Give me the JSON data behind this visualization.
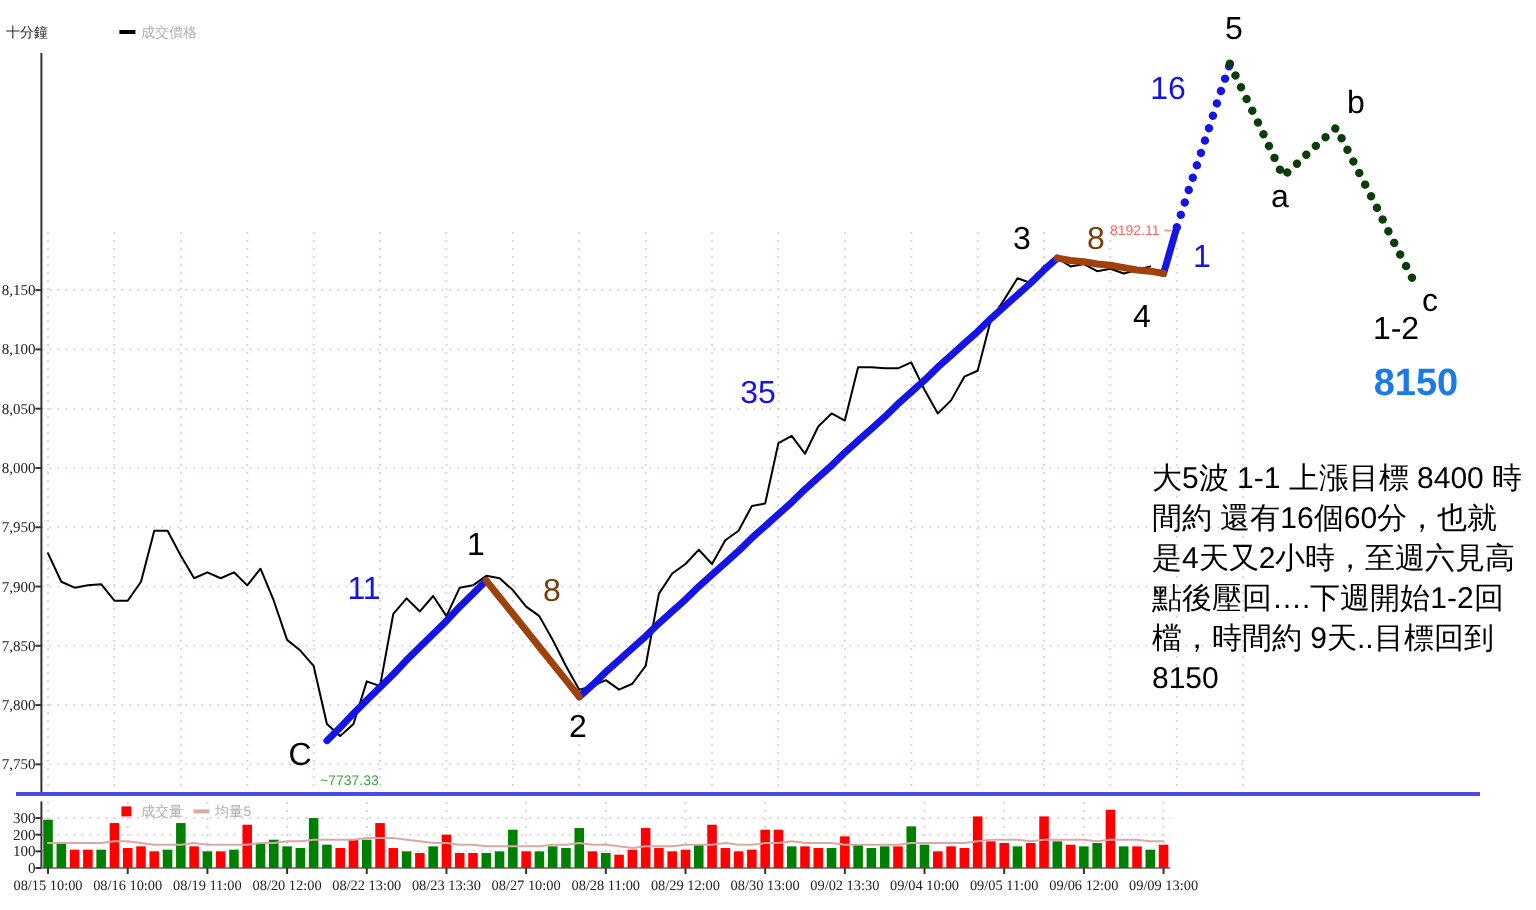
{
  "chart_data": [
    {
      "type": "line",
      "ylim": [
        7725,
        8350
      ],
      "yticks": [
        {
          "value": 7750,
          "label": "7,750"
        },
        {
          "value": 7800,
          "label": "7,800"
        },
        {
          "value": 7850,
          "label": "7,850"
        },
        {
          "value": 7900,
          "label": "7,900"
        },
        {
          "value": 7950,
          "label": "7,950"
        },
        {
          "value": 8000,
          "label": "8,000"
        },
        {
          "value": 8050,
          "label": "8,050"
        },
        {
          "value": 8100,
          "label": "8,100"
        },
        {
          "value": 8150,
          "label": "8,150"
        }
      ],
      "tick_labels": "y",
      "grid": true,
      "legend": "top left",
      "categories": [
        null,
        null,
        null,
        null,
        null,
        null,
        null,
        null,
        null,
        null,
        null,
        null,
        null,
        null,
        null,
        null,
        null,
        null,
        null,
        null,
        null,
        null,
        null,
        null,
        null,
        null,
        null,
        null,
        null,
        null,
        null,
        null,
        null,
        null,
        null,
        null,
        null,
        null,
        null,
        null,
        null,
        null,
        null,
        null,
        null,
        null,
        null,
        null,
        null,
        null,
        null,
        null,
        null,
        null,
        null,
        null,
        null,
        null,
        null,
        null,
        null,
        null,
        null,
        null,
        null,
        null,
        null,
        null,
        null,
        null,
        null,
        null,
        null,
        null,
        null,
        null,
        null,
        null,
        null,
        null,
        null,
        null,
        null,
        null,
        null,
        null,
        null,
        null,
        null,
        null,
        null,
        null,
        null,
        null,
        null,
        null,
        null,
        null,
        null,
        null,
        null,
        null,
        null,
        null
      ],
      "series": [
        {
          "name": "成交價格",
          "color": "#000000",
          "values": [
            7928,
            7904,
            7899,
            7901,
            7902,
            7888,
            7888,
            7904,
            7947,
            7947,
            7926,
            7907,
            7912,
            7907,
            7912,
            7901,
            7915,
            7888,
            7855,
            7846,
            7833,
            7784,
            7774,
            7784,
            7820,
            7816,
            7877,
            7890,
            7879,
            7892,
            7875,
            7899,
            7901,
            7909,
            7907,
            7897,
            7883,
            7875,
            7855,
            7833,
            7813,
            7816,
            7821,
            7813,
            7818,
            7833,
            7894,
            7911,
            7919,
            7931,
            7919,
            7939,
            7947,
            7968,
            7970,
            8021,
            8027,
            8012,
            8035,
            8046,
            8040,
            8085,
            8085,
            8084,
            8084,
            8089,
            8066,
            8046,
            8057,
            8077,
            8082,
            8125,
            8142,
            8160,
            8156,
            8170,
            8177,
            8170,
            8172,
            8166,
            8168,
            8164,
            8167,
            8170,
            null,
            null,
            null,
            null,
            null,
            null,
            null,
            null,
            null,
            null,
            null,
            null,
            null,
            null,
            null,
            null,
            null,
            null,
            null,
            null
          ]
        },
        {
          "color": "#1414e6",
          "values": [
            null,
            null,
            null,
            null,
            null,
            null,
            null,
            null,
            null,
            null,
            null,
            null,
            null,
            null,
            null,
            null,
            null,
            null,
            null,
            null,
            null,
            7770,
            7781,
            7793,
            7804,
            7815,
            7826,
            7838,
            7849,
            7860,
            7871,
            7883,
            7894,
            7905,
            null,
            null,
            null,
            null,
            null,
            null,
            7807,
            7817,
            7828,
            7838,
            7848,
            7858,
            7869,
            7879,
            7889,
            7900,
            7910,
            7920,
            7930,
            7941,
            7951,
            7961,
            7971,
            7982,
            7992,
            8002,
            8013,
            8023,
            8033,
            8043,
            8054,
            8064,
            8074,
            8085,
            8095,
            8105,
            8115,
            8126,
            8136,
            8146,
            8156,
            8167,
            8177,
            null,
            null,
            null,
            null,
            null,
            null,
            null,
            8164,
            8203,
            null,
            null,
            null,
            null,
            null,
            null,
            null,
            null,
            null,
            null,
            null,
            null,
            null,
            null,
            null,
            null,
            null,
            null
          ]
        },
        {
          "color": "#a0400a",
          "values": [
            null,
            null,
            null,
            null,
            null,
            null,
            null,
            null,
            null,
            null,
            null,
            null,
            null,
            null,
            null,
            null,
            null,
            null,
            null,
            null,
            null,
            null,
            null,
            null,
            null,
            null,
            null,
            null,
            null,
            null,
            null,
            null,
            null,
            7905,
            7891,
            7877,
            7863,
            7849,
            7835,
            7821,
            7807,
            null,
            null,
            null,
            null,
            null,
            null,
            null,
            null,
            null,
            null,
            null,
            null,
            null,
            null,
            null,
            null,
            null,
            null,
            null,
            null,
            null,
            null,
            null,
            null,
            null,
            null,
            null,
            null,
            null,
            null,
            null,
            null,
            null,
            null,
            null,
            8177,
            8175,
            8174,
            8172,
            8171,
            8169,
            8167,
            8166,
            8164,
            null,
            null,
            null,
            null,
            null,
            null,
            null,
            null,
            null,
            null,
            null,
            null,
            null,
            null,
            null,
            null,
            null,
            null,
            null
          ]
        },
        {
          "color": "#1414e6",
          "line_style": "dotted",
          "values": [
            null,
            null,
            null,
            null,
            null,
            null,
            null,
            null,
            null,
            null,
            null,
            null,
            null,
            null,
            null,
            null,
            null,
            null,
            null,
            null,
            null,
            null,
            null,
            null,
            null,
            null,
            null,
            null,
            null,
            null,
            null,
            null,
            null,
            null,
            null,
            null,
            null,
            null,
            null,
            null,
            null,
            null,
            null,
            null,
            null,
            null,
            null,
            null,
            null,
            null,
            null,
            null,
            null,
            null,
            null,
            null,
            null,
            null,
            null,
            null,
            null,
            null,
            null,
            null,
            null,
            null,
            null,
            null,
            null,
            null,
            null,
            null,
            null,
            null,
            null,
            null,
            null,
            null,
            null,
            null,
            null,
            null,
            null,
            null,
            null,
            8203,
            8238,
            8272,
            8307,
            8341,
            null,
            null,
            null,
            null,
            null,
            null,
            null,
            null,
            null,
            null,
            null,
            null,
            null,
            null
          ]
        },
        {
          "color": "#0b3d0b",
          "line_style": "dotted",
          "values": [
            null,
            null,
            null,
            null,
            null,
            null,
            null,
            null,
            null,
            null,
            null,
            null,
            null,
            null,
            null,
            null,
            null,
            null,
            null,
            null,
            null,
            null,
            null,
            null,
            null,
            null,
            null,
            null,
            null,
            null,
            null,
            null,
            null,
            null,
            null,
            null,
            null,
            null,
            null,
            null,
            null,
            null,
            null,
            null,
            null,
            null,
            null,
            null,
            null,
            null,
            null,
            null,
            null,
            null,
            null,
            null,
            null,
            null,
            null,
            null,
            null,
            null,
            null,
            null,
            null,
            null,
            null,
            null,
            null,
            null,
            null,
            null,
            null,
            null,
            null,
            null,
            null,
            null,
            null,
            null,
            null,
            null,
            null,
            null,
            null,
            null,
            null,
            null,
            null,
            8341,
            8317,
            8294,
            8270,
            8246,
            8256,
            8267,
            8277,
            8287,
            8265,
            8243,
            8221,
            8198,
            8176,
            8154
          ]
        }
      ],
      "annotations": [
        "十分鐘",
        "C",
        "1",
        "8",
        "2",
        "11",
        "35",
        "3",
        "8",
        "4",
        "1",
        "16",
        "5",
        "a",
        "b",
        "c",
        "1-2",
        "8150",
        "~7737.33",
        "8192.11 ~",
        "大5波 1-1 上漲目標 8400 時間約 還有16個60分，也就是4天又2小時，至週六見高點後壓回….下週開始1-2回檔，時間約 9天..目標回到 8150"
      ]
    },
    {
      "type": "bar",
      "ylim": [
        0,
        400
      ],
      "yticks": [
        0,
        100,
        200,
        300
      ],
      "grid": true,
      "legend": "top left",
      "categories": [
        "08/15 10:00",
        null,
        null,
        null,
        null,
        null,
        "08/16 10:00",
        null,
        null,
        null,
        null,
        null,
        "08/19 11:00",
        null,
        null,
        null,
        null,
        null,
        "08/20 12:00",
        null,
        null,
        null,
        null,
        null,
        "08/22 13:00",
        null,
        null,
        null,
        null,
        null,
        "08/23 13:30",
        null,
        null,
        null,
        null,
        null,
        "08/27 10:00",
        null,
        null,
        null,
        null,
        null,
        "08/28 11:00",
        null,
        null,
        null,
        null,
        null,
        "08/29 12:00",
        null,
        null,
        null,
        null,
        null,
        "08/30 13:00",
        null,
        null,
        null,
        null,
        null,
        "09/02 13:30",
        null,
        null,
        null,
        null,
        null,
        "09/04 10:00",
        null,
        null,
        null,
        null,
        null,
        "09/05 11:00",
        null,
        null,
        null,
        null,
        null,
        "09/06 12:00",
        null,
        null,
        null,
        null,
        null,
        "09/09 13:00"
      ],
      "series": [
        {
          "name": "成交量",
          "color": "#ff0000",
          "values": [
            290,
            150,
            110,
            110,
            110,
            270,
            120,
            130,
            100,
            110,
            270,
            130,
            100,
            100,
            110,
            260,
            150,
            170,
            130,
            120,
            300,
            140,
            120,
            170,
            170,
            270,
            120,
            100,
            90,
            130,
            200,
            90,
            90,
            90,
            100,
            230,
            100,
            100,
            130,
            120,
            240,
            100,
            90,
            80,
            110,
            240,
            120,
            100,
            110,
            140,
            260,
            120,
            100,
            110,
            230,
            230,
            130,
            130,
            120,
            120,
            190,
            140,
            120,
            130,
            130,
            250,
            140,
            100,
            130,
            120,
            310,
            160,
            150,
            130,
            150,
            310,
            160,
            140,
            130,
            150,
            350,
            130,
            130,
            110,
            140
          ],
          "colors": [
            "#008000",
            "#008000",
            "#ff0000",
            "#ff0000",
            "#008000",
            "#ff0000",
            "#ff0000",
            "#ff0000",
            "#ff0000",
            "#008000",
            "#008000",
            "#ff0000",
            "#008000",
            "#ff0000",
            "#008000",
            "#ff0000",
            "#008000",
            "#008000",
            "#008000",
            "#008000",
            "#008000",
            "#008000",
            "#ff0000",
            "#ff0000",
            "#008000",
            "#ff0000",
            "#ff0000",
            "#008000",
            "#ff0000",
            "#008000",
            "#ff0000",
            "#ff0000",
            "#ff0000",
            "#008000",
            "#008000",
            "#008000",
            "#ff0000",
            "#008000",
            "#008000",
            "#008000",
            "#008000",
            "#ff0000",
            "#008000",
            "#ff0000",
            "#ff0000",
            "#ff0000",
            "#ff0000",
            "#ff0000",
            "#ff0000",
            "#008000",
            "#ff0000",
            "#ff0000",
            "#ff0000",
            "#ff0000",
            "#ff0000",
            "#ff0000",
            "#008000",
            "#ff0000",
            "#ff0000",
            "#008000",
            "#ff0000",
            "#008000",
            "#008000",
            "#008000",
            "#ff0000",
            "#008000",
            "#008000",
            "#ff0000",
            "#ff0000",
            "#ff0000",
            "#ff0000",
            "#ff0000",
            "#ff0000",
            "#008000",
            "#ff0000",
            "#ff0000",
            "#008000",
            "#ff0000",
            "#008000",
            "#008000",
            "#ff0000",
            "#008000",
            "#ff0000",
            "#008000",
            "#ff0000"
          ]
        },
        {
          "name": "均量5",
          "type": "line",
          "color": "#dba8a8",
          "values": [
            150,
            150,
            150,
            150,
            150,
            160,
            160,
            150,
            140,
            140,
            140,
            150,
            140,
            140,
            140,
            140,
            150,
            150,
            160,
            160,
            170,
            170,
            170,
            170,
            180,
            180,
            180,
            170,
            160,
            150,
            150,
            140,
            140,
            130,
            130,
            130,
            130,
            130,
            140,
            140,
            150,
            140,
            140,
            130,
            120,
            130,
            130,
            130,
            140,
            140,
            140,
            150,
            140,
            140,
            150,
            150,
            160,
            150,
            150,
            150,
            140,
            140,
            140,
            140,
            140,
            150,
            150,
            150,
            150,
            150,
            160,
            170,
            170,
            170,
            160,
            170,
            170,
            170,
            170,
            160,
            170,
            170,
            170,
            160,
            160
          ]
        }
      ]
    }
  ]
}
